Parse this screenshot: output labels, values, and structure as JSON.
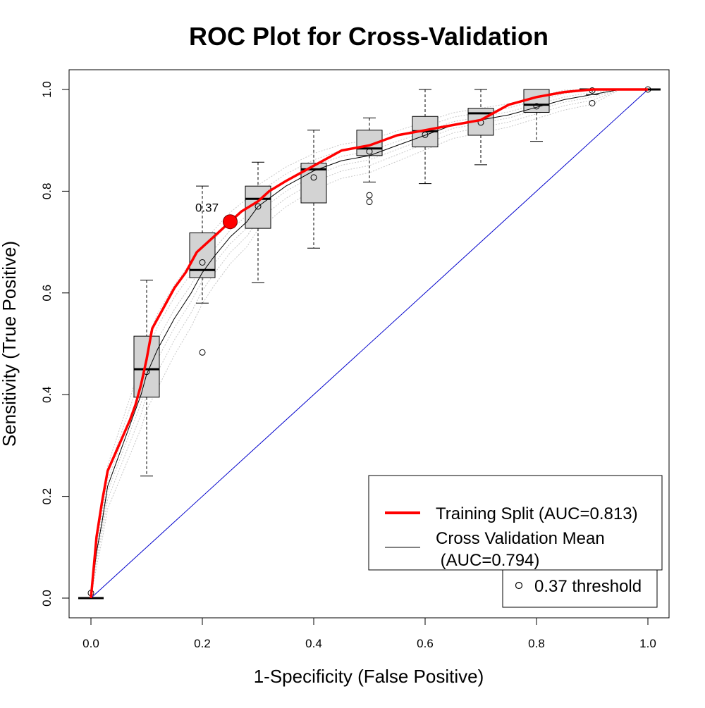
{
  "chart_data": {
    "type": "line",
    "title": "ROC Plot for Cross-Validation",
    "xlabel": "1-Specificity (False Positive)",
    "ylabel": "Sensitivity (True Positive)",
    "xlim": [
      0,
      1
    ],
    "ylim": [
      0,
      1
    ],
    "xticks": [
      "0.0",
      "0.2",
      "0.4",
      "0.6",
      "0.8",
      "1.0"
    ],
    "yticks": [
      "0.0",
      "0.2",
      "0.4",
      "0.6",
      "0.8",
      "1.0"
    ],
    "grid": false,
    "legend_position": "bottom-right",
    "legend_entries": [
      {
        "label": "Training Split (AUC=0.813)",
        "color": "#ff0000",
        "style": "line-thick"
      },
      {
        "label": "Cross Validation Mean",
        "label2": " (AUC=0.794)",
        "color": "#000000",
        "style": "line-thin"
      }
    ],
    "threshold_legend": "0.37 threshold",
    "threshold_point": {
      "label": "0.37",
      "x": 0.25,
      "y": 0.74,
      "color": "#ff0000"
    },
    "colors": {
      "training": "#ff0000",
      "cv_mean": "#000000",
      "diagonal": "#0000cc",
      "fold_lines": "#c8c8c8",
      "box_fill": "#d3d3d3"
    },
    "series": [
      {
        "name": "Training Split (AUC=0.813)",
        "x": [
          0,
          0.01,
          0.02,
          0.03,
          0.05,
          0.07,
          0.08,
          0.09,
          0.1,
          0.11,
          0.12,
          0.13,
          0.14,
          0.15,
          0.17,
          0.19,
          0.2,
          0.22,
          0.25,
          0.27,
          0.3,
          0.32,
          0.35,
          0.4,
          0.45,
          0.5,
          0.55,
          0.6,
          0.65,
          0.7,
          0.75,
          0.8,
          0.85,
          0.9,
          0.95,
          1.0
        ],
        "y": [
          0,
          0.12,
          0.19,
          0.25,
          0.3,
          0.35,
          0.38,
          0.42,
          0.47,
          0.53,
          0.55,
          0.57,
          0.59,
          0.61,
          0.64,
          0.68,
          0.69,
          0.71,
          0.74,
          0.76,
          0.78,
          0.8,
          0.82,
          0.85,
          0.88,
          0.89,
          0.91,
          0.92,
          0.93,
          0.94,
          0.97,
          0.985,
          0.995,
          1.0,
          1.0,
          1.0
        ]
      },
      {
        "name": "Cross Validation Mean",
        "x": [
          0,
          0.01,
          0.02,
          0.03,
          0.05,
          0.07,
          0.09,
          0.1,
          0.12,
          0.15,
          0.18,
          0.2,
          0.22,
          0.25,
          0.28,
          0.3,
          0.35,
          0.4,
          0.45,
          0.5,
          0.55,
          0.6,
          0.65,
          0.7,
          0.75,
          0.8,
          0.85,
          0.9,
          0.95,
          1.0
        ],
        "y": [
          0,
          0.09,
          0.15,
          0.22,
          0.28,
          0.34,
          0.4,
          0.44,
          0.49,
          0.55,
          0.6,
          0.64,
          0.67,
          0.71,
          0.74,
          0.77,
          0.81,
          0.84,
          0.86,
          0.87,
          0.89,
          0.91,
          0.93,
          0.94,
          0.95,
          0.965,
          0.98,
          0.99,
          1.0,
          1.0
        ]
      }
    ],
    "boxplots": [
      {
        "x": 0.1,
        "whisker_low": 0.24,
        "q1": 0.395,
        "median": 0.45,
        "q3": 0.515,
        "whisker_high": 0.625,
        "outliers": [],
        "mean": 0.445
      },
      {
        "x": 0.2,
        "whisker_low": 0.58,
        "q1": 0.63,
        "median": 0.645,
        "q3": 0.718,
        "whisker_high": 0.81,
        "outliers": [
          0.483
        ],
        "mean": 0.66
      },
      {
        "x": 0.3,
        "whisker_low": 0.62,
        "q1": 0.727,
        "median": 0.785,
        "q3": 0.81,
        "whisker_high": 0.857,
        "outliers": [],
        "mean": 0.77
      },
      {
        "x": 0.4,
        "whisker_low": 0.688,
        "q1": 0.777,
        "median": 0.843,
        "q3": 0.855,
        "whisker_high": 0.92,
        "outliers": [],
        "mean": 0.827
      },
      {
        "x": 0.5,
        "whisker_low": 0.818,
        "q1": 0.87,
        "median": 0.884,
        "q3": 0.92,
        "whisker_high": 0.944,
        "outliers": [
          0.779,
          0.792
        ],
        "mean": 0.878
      },
      {
        "x": 0.6,
        "whisker_low": 0.815,
        "q1": 0.887,
        "median": 0.918,
        "q3": 0.947,
        "whisker_high": 1.0,
        "outliers": [],
        "mean": 0.911
      },
      {
        "x": 0.7,
        "whisker_low": 0.852,
        "q1": 0.91,
        "median": 0.953,
        "q3": 0.963,
        "whisker_high": 1.0,
        "outliers": [],
        "mean": 0.935
      },
      {
        "x": 0.8,
        "whisker_low": 0.898,
        "q1": 0.955,
        "median": 0.97,
        "q3": 1.0,
        "whisker_high": 1.0,
        "outliers": [],
        "mean": 0.967
      },
      {
        "x": 0.9,
        "whisker_low": 0.99,
        "q1": 1.0,
        "median": 1.0,
        "q3": 1.0,
        "whisker_high": 1.0,
        "outliers": [
          0.973
        ],
        "mean": 0.998
      },
      {
        "x": 0.0,
        "whisker_low": 0.0,
        "q1": 0.0,
        "median": 0.0,
        "q3": 0.0,
        "whisker_high": 0.0,
        "outliers": [],
        "mean": 0.01
      },
      {
        "x": 1.0,
        "whisker_low": 1.0,
        "q1": 1.0,
        "median": 1.0,
        "q3": 1.0,
        "whisker_high": 1.0,
        "outliers": [],
        "mean": 1.0
      }
    ]
  }
}
